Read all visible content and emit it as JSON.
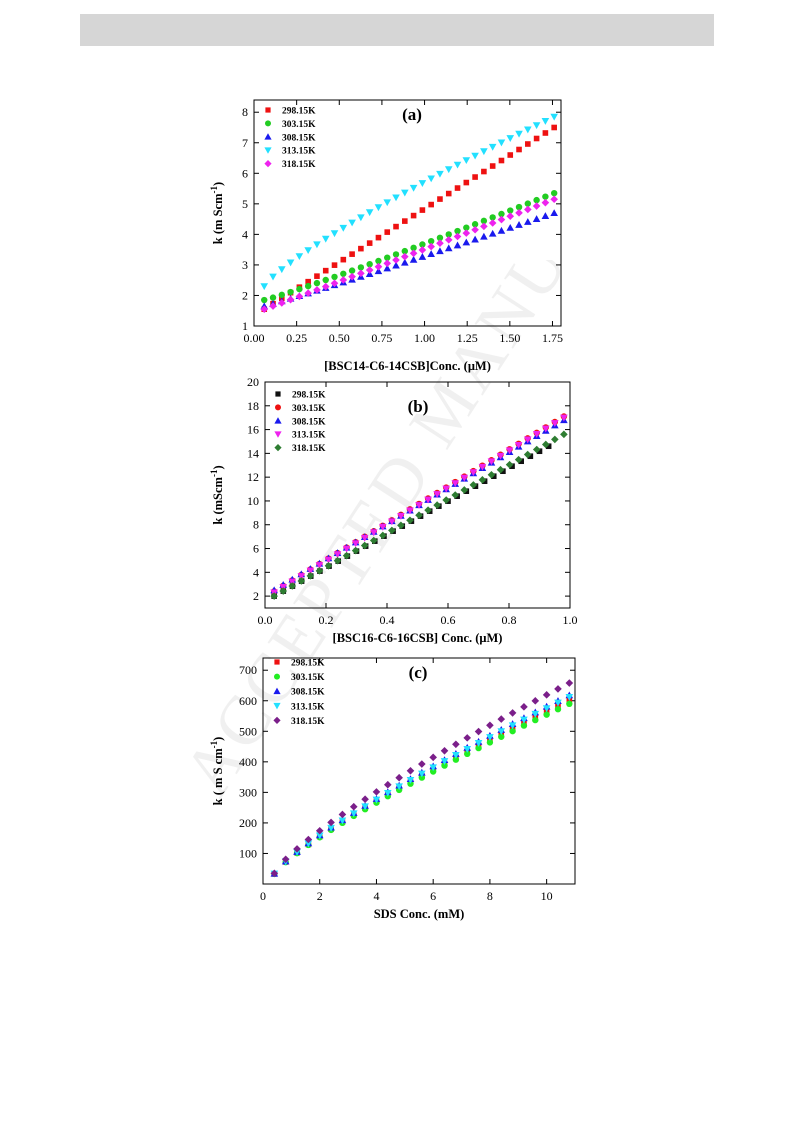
{
  "watermark": "ACCEPTED MANUSCRIPT",
  "chart_data": [
    {
      "type": "scatter",
      "panel_label": "(a)",
      "xlabel": "[BSC14-C6-14CSB]Conc. (μM)",
      "ylabel_main": "k (m Scm",
      "ylabel_sup": "-1",
      "ylabel_end": ")",
      "xlim": [
        0,
        1.8
      ],
      "ylim": [
        1,
        8.4
      ],
      "xticks": [
        "0.00",
        "0.25",
        "0.50",
        "0.75",
        "1.00",
        "1.25",
        "1.50",
        "1.75"
      ],
      "xtick_values": [
        0,
        0.25,
        0.5,
        0.75,
        1.0,
        1.25,
        1.5,
        1.75
      ],
      "yticks": [
        "1",
        "2",
        "3",
        "4",
        "5",
        "6",
        "7",
        "8"
      ],
      "ytick_values": [
        1,
        2,
        3,
        4,
        5,
        6,
        7,
        8
      ],
      "legend_position": "top-left",
      "series": [
        {
          "name": "298.15K",
          "color": "#ee1111",
          "marker": "square",
          "x_start": 0.06,
          "x_end": 1.76,
          "n": 34,
          "y_start": 1.55,
          "y_end": 7.5,
          "curve": 1.0
        },
        {
          "name": "303.15K",
          "color": "#22cc22",
          "marker": "circle",
          "x_start": 0.06,
          "x_end": 1.76,
          "n": 34,
          "y_start": 1.85,
          "y_end": 5.35,
          "curve": 1.08
        },
        {
          "name": "308.15K",
          "color": "#1a1aee",
          "marker": "triangle-up",
          "x_start": 0.06,
          "x_end": 1.76,
          "n": 34,
          "y_start": 1.65,
          "y_end": 4.7,
          "curve": 1.05
        },
        {
          "name": "313.15K",
          "color": "#22e0ff",
          "marker": "triangle-down",
          "x_start": 0.06,
          "x_end": 1.76,
          "n": 34,
          "y_start": 2.3,
          "y_end": 7.85,
          "curve": 0.82
        },
        {
          "name": "318.15K",
          "color": "#ee22ee",
          "marker": "diamond",
          "x_start": 0.06,
          "x_end": 1.76,
          "n": 34,
          "y_start": 1.55,
          "y_end": 5.15,
          "curve": 1.02
        }
      ]
    },
    {
      "type": "scatter",
      "panel_label": "(b)",
      "xlabel": "[BSC16-C6-16CSB] Conc. (μM)",
      "ylabel_main": "k (mScm",
      "ylabel_sup": "-1",
      "ylabel_end": ")",
      "xlim": [
        0,
        1.0
      ],
      "ylim": [
        1,
        20
      ],
      "xticks": [
        "0.0",
        "0.2",
        "0.4",
        "0.6",
        "0.8",
        "1.0"
      ],
      "xtick_values": [
        0,
        0.2,
        0.4,
        0.6,
        0.8,
        1.0
      ],
      "yticks": [
        "2",
        "4",
        "6",
        "8",
        "10",
        "12",
        "14",
        "16",
        "18",
        "20"
      ],
      "ytick_values": [
        2,
        4,
        6,
        8,
        10,
        12,
        14,
        16,
        18,
        20
      ],
      "legend_position": "top-left",
      "series": [
        {
          "name": "298.15K",
          "color": "#111111",
          "marker": "square",
          "x_start": 0.03,
          "x_end": 0.93,
          "n": 31,
          "y_start": 2.0,
          "y_end": 14.6,
          "curve": 1.0
        },
        {
          "name": "303.15K",
          "color": "#ee1111",
          "marker": "circle",
          "x_start": 0.03,
          "x_end": 0.98,
          "n": 33,
          "y_start": 2.4,
          "y_end": 17.1,
          "curve": 1.0
        },
        {
          "name": "308.15K",
          "color": "#1a1aee",
          "marker": "triangle-up",
          "x_start": 0.03,
          "x_end": 0.98,
          "n": 33,
          "y_start": 2.5,
          "y_end": 16.8,
          "curve": 1.0
        },
        {
          "name": "313.15K",
          "color": "#ee22ee",
          "marker": "triangle-down",
          "x_start": 0.03,
          "x_end": 0.98,
          "n": 33,
          "y_start": 2.3,
          "y_end": 17.0,
          "curve": 1.0
        },
        {
          "name": "318.15K",
          "color": "#2e7d32",
          "marker": "diamond",
          "x_start": 0.03,
          "x_end": 0.98,
          "n": 33,
          "y_start": 2.0,
          "y_end": 15.6,
          "curve": 1.0
        }
      ]
    },
    {
      "type": "scatter",
      "panel_label": "(c)",
      "xlabel": "SDS Conc. (mM)",
      "ylabel_main": "k ( m S cm",
      "ylabel_sup": "-1",
      "ylabel_end": ")",
      "xlim": [
        0,
        11
      ],
      "ylim": [
        0,
        740
      ],
      "xticks": [
        "0",
        "2",
        "4",
        "6",
        "8",
        "10"
      ],
      "xtick_values": [
        0,
        2,
        4,
        6,
        8,
        10
      ],
      "yticks": [
        "100",
        "200",
        "300",
        "400",
        "500",
        "600",
        "700"
      ],
      "ytick_values": [
        100,
        200,
        300,
        400,
        500,
        600,
        700
      ],
      "legend_position": "top-left",
      "series": [
        {
          "name": "298.15K",
          "color": "#ee1111",
          "marker": "square",
          "x_start": 0.4,
          "x_end": 10.8,
          "n": 27,
          "y_start": 33,
          "y_end": 600,
          "curve": 0.82
        },
        {
          "name": "303.15K",
          "color": "#22ee22",
          "marker": "circle",
          "x_start": 0.4,
          "x_end": 10.8,
          "n": 27,
          "y_start": 33,
          "y_end": 590,
          "curve": 0.82
        },
        {
          "name": "308.15K",
          "color": "#1a1aee",
          "marker": "triangle-up",
          "x_start": 0.4,
          "x_end": 10.8,
          "n": 27,
          "y_start": 34,
          "y_end": 618,
          "curve": 0.82
        },
        {
          "name": "313.15K",
          "color": "#22e0ff",
          "marker": "triangle-down",
          "x_start": 0.4,
          "x_end": 10.8,
          "n": 27,
          "y_start": 34,
          "y_end": 612,
          "curve": 0.82
        },
        {
          "name": "318.15K",
          "color": "#7b1f8a",
          "marker": "diamond",
          "x_start": 0.4,
          "x_end": 10.8,
          "n": 27,
          "y_start": 35,
          "y_end": 658,
          "curve": 0.8
        }
      ]
    }
  ]
}
